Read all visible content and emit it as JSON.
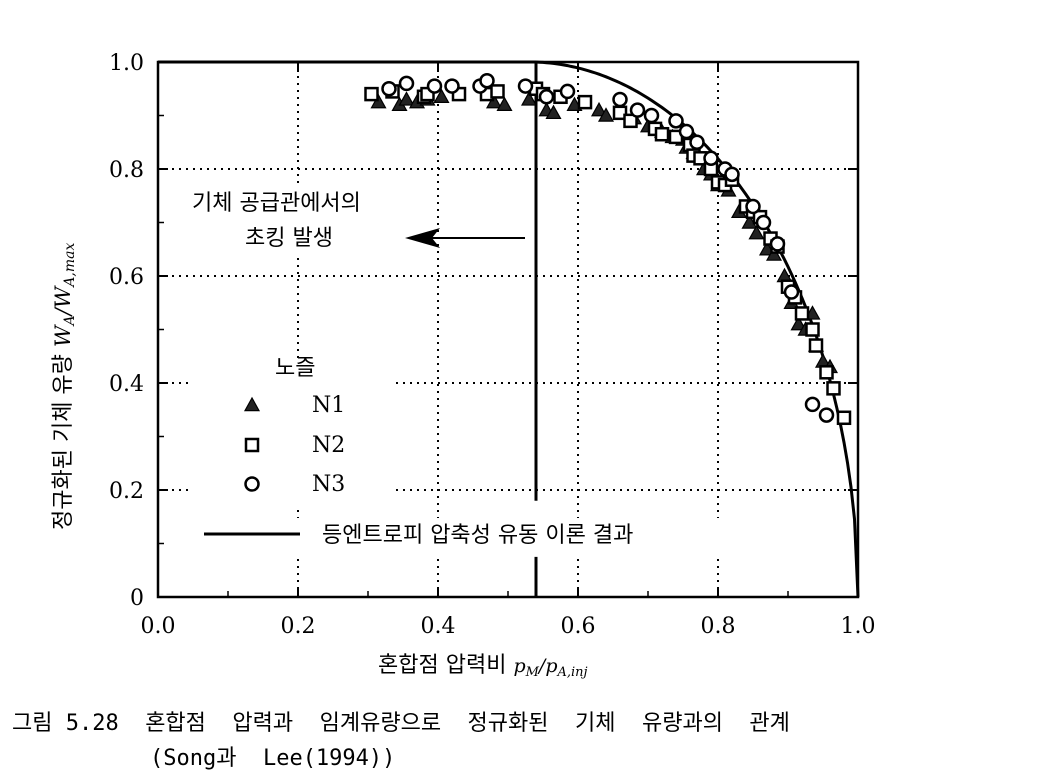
{
  "chart_data": {
    "type": "scatter",
    "xlabel": "혼합점 압력비 ",
    "xlabel_math": "p_M/p_A,inj",
    "ylabel": "정규화된 기체 유량 ",
    "ylabel_math": "W_A/W_A,max",
    "xlim": [
      0.0,
      1.0
    ],
    "ylim": [
      0.0,
      1.0
    ],
    "x_ticks": [
      "0.0",
      "0.2",
      "0.4",
      "0.6",
      "0.8",
      "1.0"
    ],
    "y_ticks": [
      "0",
      "0.2",
      "0.4",
      "0.6",
      "0.8",
      "1.0"
    ],
    "grid": "dotted",
    "choking_pressure_ratio": 0.54,
    "annotation": {
      "line1": "기체 공급관에서의",
      "line2": "초킹 발생"
    },
    "legend": {
      "title": "노즐",
      "entries": [
        "N1",
        "N2",
        "N3"
      ],
      "theory_label": "등엔트로피 압축성 유동 이론 결과"
    },
    "series": [
      {
        "name": "N1",
        "marker": "triangle",
        "points": [
          [
            0.315,
            0.925
          ],
          [
            0.345,
            0.92
          ],
          [
            0.355,
            0.93
          ],
          [
            0.37,
            0.925
          ],
          [
            0.385,
            0.93
          ],
          [
            0.405,
            0.935
          ],
          [
            0.48,
            0.925
          ],
          [
            0.495,
            0.92
          ],
          [
            0.53,
            0.93
          ],
          [
            0.555,
            0.91
          ],
          [
            0.565,
            0.905
          ],
          [
            0.595,
            0.92
          ],
          [
            0.63,
            0.91
          ],
          [
            0.64,
            0.9
          ],
          [
            0.68,
            0.895
          ],
          [
            0.7,
            0.88
          ],
          [
            0.72,
            0.87
          ],
          [
            0.735,
            0.86
          ],
          [
            0.75,
            0.855
          ],
          [
            0.755,
            0.84
          ],
          [
            0.765,
            0.83
          ],
          [
            0.78,
            0.8
          ],
          [
            0.79,
            0.79
          ],
          [
            0.8,
            0.77
          ],
          [
            0.815,
            0.76
          ],
          [
            0.83,
            0.72
          ],
          [
            0.845,
            0.7
          ],
          [
            0.855,
            0.68
          ],
          [
            0.87,
            0.65
          ],
          [
            0.88,
            0.64
          ],
          [
            0.895,
            0.6
          ],
          [
            0.905,
            0.55
          ],
          [
            0.915,
            0.51
          ],
          [
            0.925,
            0.5
          ],
          [
            0.935,
            0.53
          ],
          [
            0.94,
            0.47
          ],
          [
            0.95,
            0.44
          ],
          [
            0.96,
            0.43
          ]
        ]
      },
      {
        "name": "N2",
        "marker": "square",
        "points": [
          [
            0.305,
            0.94
          ],
          [
            0.335,
            0.945
          ],
          [
            0.38,
            0.935
          ],
          [
            0.385,
            0.94
          ],
          [
            0.43,
            0.94
          ],
          [
            0.47,
            0.94
          ],
          [
            0.485,
            0.945
          ],
          [
            0.54,
            0.95
          ],
          [
            0.55,
            0.94
          ],
          [
            0.575,
            0.935
          ],
          [
            0.61,
            0.925
          ],
          [
            0.66,
            0.905
          ],
          [
            0.675,
            0.89
          ],
          [
            0.71,
            0.875
          ],
          [
            0.72,
            0.865
          ],
          [
            0.74,
            0.86
          ],
          [
            0.76,
            0.845
          ],
          [
            0.765,
            0.825
          ],
          [
            0.775,
            0.82
          ],
          [
            0.79,
            0.8
          ],
          [
            0.8,
            0.775
          ],
          [
            0.81,
            0.77
          ],
          [
            0.82,
            0.78
          ],
          [
            0.84,
            0.73
          ],
          [
            0.85,
            0.72
          ],
          [
            0.86,
            0.71
          ],
          [
            0.875,
            0.67
          ],
          [
            0.885,
            0.655
          ],
          [
            0.9,
            0.58
          ],
          [
            0.91,
            0.56
          ],
          [
            0.92,
            0.53
          ],
          [
            0.935,
            0.5
          ],
          [
            0.94,
            0.47
          ],
          [
            0.955,
            0.42
          ],
          [
            0.965,
            0.39
          ],
          [
            0.98,
            0.335
          ]
        ]
      },
      {
        "name": "N3",
        "marker": "circle",
        "points": [
          [
            0.33,
            0.95
          ],
          [
            0.355,
            0.96
          ],
          [
            0.395,
            0.955
          ],
          [
            0.42,
            0.955
          ],
          [
            0.46,
            0.955
          ],
          [
            0.47,
            0.965
          ],
          [
            0.525,
            0.955
          ],
          [
            0.555,
            0.935
          ],
          [
            0.585,
            0.945
          ],
          [
            0.66,
            0.93
          ],
          [
            0.685,
            0.91
          ],
          [
            0.705,
            0.9
          ],
          [
            0.74,
            0.89
          ],
          [
            0.755,
            0.87
          ],
          [
            0.77,
            0.85
          ],
          [
            0.79,
            0.82
          ],
          [
            0.81,
            0.8
          ],
          [
            0.82,
            0.79
          ],
          [
            0.85,
            0.73
          ],
          [
            0.865,
            0.7
          ],
          [
            0.885,
            0.66
          ],
          [
            0.905,
            0.57
          ],
          [
            0.935,
            0.36
          ],
          [
            0.955,
            0.34
          ]
        ]
      }
    ]
  },
  "caption": {
    "line1": "그림 5.28  혼합점  압력과  임계유량으로  정규화된  기체  유량과의  관계",
    "line2": "(Song과  Lee(1994))"
  }
}
